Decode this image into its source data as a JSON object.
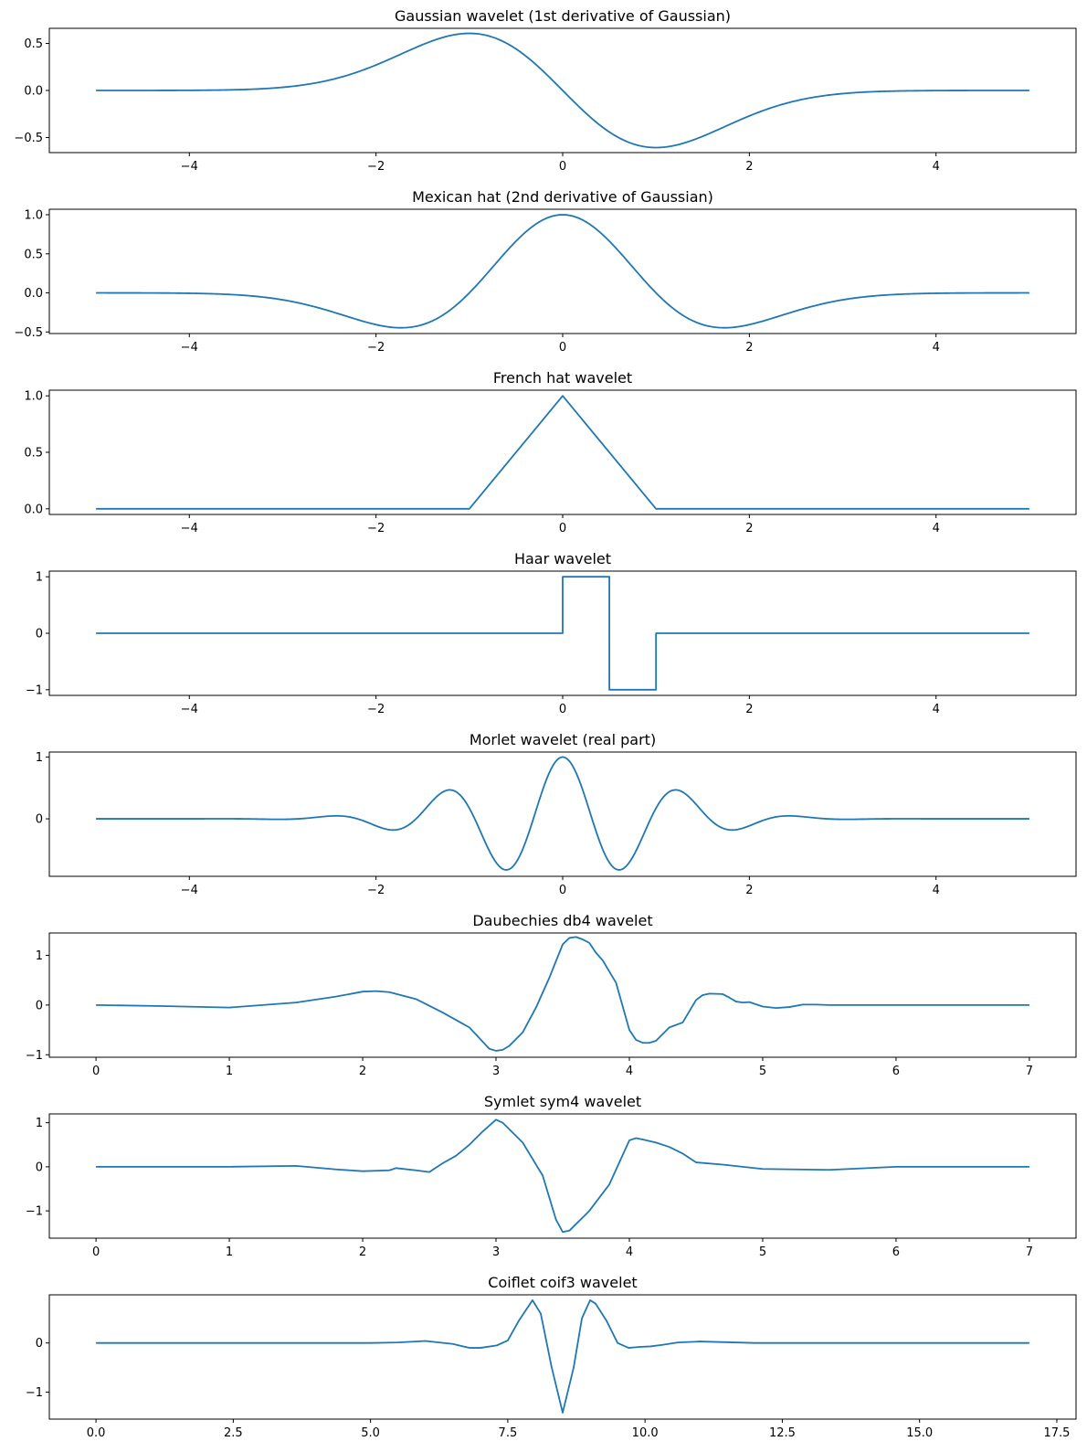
{
  "chart_data": [
    {
      "type": "line",
      "title": "Gaussian wavelet (1st derivative of Gaussian)",
      "series": [
        {
          "name": "gaussian",
          "fn": "gaus1",
          "x_range": [
            -5,
            5
          ]
        }
      ],
      "xlim": [
        -5.5,
        5.5
      ],
      "ylim": [
        -0.66,
        0.66
      ],
      "xticks": [
        -4,
        -2,
        0,
        2,
        4
      ],
      "xtick_labels": [
        "−4",
        "−2",
        "0",
        "2",
        "4"
      ],
      "yticks": [
        -0.5,
        0,
        0.5
      ],
      "ytick_labels": [
        "−0.5",
        "0.0",
        "0.5"
      ],
      "color": "#1f77b4"
    },
    {
      "type": "line",
      "title": "Mexican hat (2nd derivative of Gaussian)",
      "series": [
        {
          "name": "mexican-hat",
          "fn": "mexh",
          "x_range": [
            -5,
            5
          ]
        }
      ],
      "xlim": [
        -5.5,
        5.5
      ],
      "ylim": [
        -0.52,
        1.07
      ],
      "xticks": [
        -4,
        -2,
        0,
        2,
        4
      ],
      "xtick_labels": [
        "−4",
        "−2",
        "0",
        "2",
        "4"
      ],
      "yticks": [
        -0.5,
        0,
        0.5,
        1
      ],
      "ytick_labels": [
        "−0.5",
        "0.0",
        "0.5",
        "1.0"
      ],
      "color": "#1f77b4"
    },
    {
      "type": "line",
      "title": "French hat wavelet",
      "series": [
        {
          "name": "french-hat",
          "x": [
            -5,
            -1,
            0,
            1,
            5
          ],
          "y": [
            0,
            0,
            1,
            0,
            0
          ]
        }
      ],
      "xlim": [
        -5.5,
        5.5
      ],
      "ylim": [
        -0.05,
        1.05
      ],
      "xticks": [
        -4,
        -2,
        0,
        2,
        4
      ],
      "xtick_labels": [
        "−4",
        "−2",
        "0",
        "2",
        "4"
      ],
      "yticks": [
        0,
        0.5,
        1
      ],
      "ytick_labels": [
        "0.0",
        "0.5",
        "1.0"
      ],
      "color": "#1f77b4"
    },
    {
      "type": "line",
      "title": "Haar wavelet",
      "series": [
        {
          "name": "haar",
          "x": [
            -5,
            0,
            0,
            0.5,
            0.5,
            1,
            1,
            5
          ],
          "y": [
            0,
            0,
            1,
            1,
            -1,
            -1,
            0,
            0
          ]
        }
      ],
      "xlim": [
        -5.5,
        5.5
      ],
      "ylim": [
        -1.1,
        1.1
      ],
      "xticks": [
        -4,
        -2,
        0,
        2,
        4
      ],
      "xtick_labels": [
        "−4",
        "−2",
        "0",
        "2",
        "4"
      ],
      "yticks": [
        -1,
        0,
        1
      ],
      "ytick_labels": [
        "−1",
        "0",
        "1"
      ],
      "color": "#1f77b4"
    },
    {
      "type": "line",
      "title": "Morlet wavelet (real part)",
      "series": [
        {
          "name": "morlet",
          "fn": "morlet",
          "x_range": [
            -5,
            5
          ]
        }
      ],
      "xlim": [
        -5.5,
        5.5
      ],
      "ylim": [
        -0.93,
        1.08
      ],
      "xticks": [
        -4,
        -2,
        0,
        2,
        4
      ],
      "xtick_labels": [
        "−4",
        "−2",
        "0",
        "2",
        "4"
      ],
      "yticks": [
        0,
        1
      ],
      "ytick_labels": [
        "0",
        "1"
      ],
      "color": "#1f77b4"
    },
    {
      "type": "line",
      "title": "Daubechies db4 wavelet",
      "series": [
        {
          "name": "db4",
          "x": [
            0,
            0.5,
            1.0,
            1.5,
            1.8,
            2.0,
            2.1,
            2.2,
            2.4,
            2.6,
            2.8,
            2.95,
            3.0,
            3.05,
            3.1,
            3.2,
            3.3,
            3.4,
            3.5,
            3.55,
            3.6,
            3.65,
            3.7,
            3.75,
            3.8,
            3.9,
            4.0,
            4.05,
            4.1,
            4.15,
            4.2,
            4.3,
            4.4,
            4.5,
            4.55,
            4.6,
            4.7,
            4.75,
            4.8,
            4.85,
            4.9,
            5.0,
            5.1,
            5.2,
            5.3,
            5.4,
            5.5,
            6.0,
            7.0
          ],
          "y": [
            0,
            -0.02,
            -0.05,
            0.05,
            0.17,
            0.27,
            0.28,
            0.26,
            0.12,
            -0.15,
            -0.45,
            -0.88,
            -0.92,
            -0.9,
            -0.82,
            -0.55,
            -0.05,
            0.55,
            1.22,
            1.35,
            1.37,
            1.32,
            1.25,
            1.05,
            0.9,
            0.45,
            -0.5,
            -0.7,
            -0.76,
            -0.76,
            -0.72,
            -0.45,
            -0.35,
            0.1,
            0.2,
            0.23,
            0.22,
            0.15,
            0.07,
            0.05,
            0.06,
            -0.03,
            -0.06,
            -0.04,
            0.01,
            0.01,
            0.0,
            0.0,
            0.0
          ]
        }
      ],
      "xlim": [
        -0.35,
        7.35
      ],
      "ylim": [
        -1.05,
        1.45
      ],
      "xticks": [
        0,
        1,
        2,
        3,
        4,
        5,
        6,
        7
      ],
      "xtick_labels": [
        "0",
        "1",
        "2",
        "3",
        "4",
        "5",
        "6",
        "7"
      ],
      "yticks": [
        -1,
        0,
        1
      ],
      "ytick_labels": [
        "−1",
        "0",
        "1"
      ],
      "color": "#1f77b4"
    },
    {
      "type": "line",
      "title": "Symlet sym4 wavelet",
      "series": [
        {
          "name": "sym4",
          "x": [
            0,
            1.0,
            1.5,
            1.8,
            2.0,
            2.2,
            2.25,
            2.4,
            2.5,
            2.6,
            2.7,
            2.8,
            2.9,
            3.0,
            3.05,
            3.2,
            3.35,
            3.45,
            3.5,
            3.55,
            3.6,
            3.7,
            3.85,
            4.0,
            4.05,
            4.1,
            4.2,
            4.3,
            4.4,
            4.5,
            4.7,
            5.0,
            5.5,
            6.0,
            7.0
          ],
          "y": [
            0,
            0,
            0.02,
            -0.06,
            -0.1,
            -0.08,
            -0.03,
            -0.08,
            -0.12,
            0.08,
            0.25,
            0.5,
            0.8,
            1.07,
            1.0,
            0.55,
            -0.2,
            -1.2,
            -1.48,
            -1.45,
            -1.3,
            -1.0,
            -0.4,
            0.6,
            0.65,
            0.62,
            0.55,
            0.45,
            0.3,
            0.1,
            0.05,
            -0.05,
            -0.07,
            0.0,
            0.0
          ]
        }
      ],
      "xlim": [
        -0.35,
        7.35
      ],
      "ylim": [
        -1.62,
        1.2
      ],
      "xticks": [
        0,
        1,
        2,
        3,
        4,
        5,
        6,
        7
      ],
      "xtick_labels": [
        "0",
        "1",
        "2",
        "3",
        "4",
        "5",
        "6",
        "7"
      ],
      "yticks": [
        -1,
        0,
        1
      ],
      "ytick_labels": [
        "−1",
        "0",
        "1"
      ],
      "color": "#1f77b4"
    },
    {
      "type": "line",
      "title": "Coiflet coif3 wavelet",
      "series": [
        {
          "name": "coif3",
          "x": [
            0,
            5.0,
            5.5,
            6.0,
            6.5,
            6.8,
            7.0,
            7.3,
            7.5,
            7.7,
            7.95,
            8.1,
            8.3,
            8.5,
            8.7,
            8.85,
            9.0,
            9.1,
            9.3,
            9.5,
            9.7,
            9.9,
            10.1,
            10.3,
            10.6,
            11.0,
            12.0,
            17.0
          ],
          "y": [
            0,
            0,
            0.01,
            0.04,
            -0.02,
            -0.1,
            -0.1,
            -0.05,
            0.05,
            0.45,
            0.87,
            0.6,
            -0.5,
            -1.42,
            -0.5,
            0.5,
            0.87,
            0.8,
            0.45,
            0.0,
            -0.1,
            -0.08,
            -0.07,
            -0.04,
            0.01,
            0.03,
            0.0,
            0.0
          ]
        }
      ],
      "xlim": [
        -0.85,
        17.85
      ],
      "ylim": [
        -1.55,
        0.98
      ],
      "xticks": [
        0,
        2.5,
        5,
        7.5,
        10,
        12.5,
        15,
        17.5
      ],
      "xtick_labels": [
        "0.0",
        "2.5",
        "5.0",
        "7.5",
        "10.0",
        "12.5",
        "15.0",
        "17.5"
      ],
      "yticks": [
        -1,
        0
      ],
      "ytick_labels": [
        "−1",
        "0"
      ],
      "color": "#1f77b4"
    }
  ]
}
